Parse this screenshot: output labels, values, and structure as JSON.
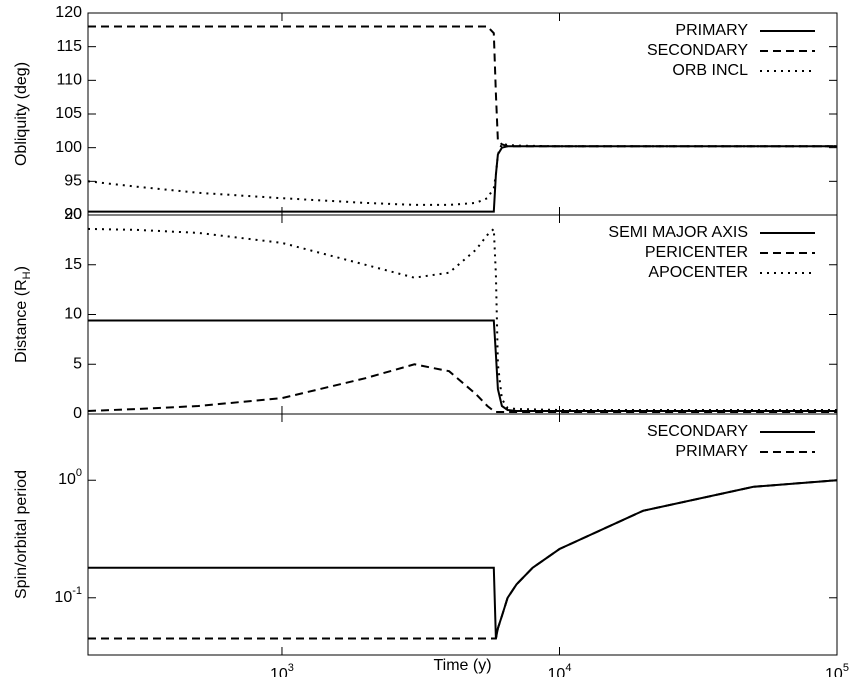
{
  "chart_data": [
    {
      "type": "line",
      "ylabel": "Obliquity (deg)",
      "xlog": true,
      "xlim": [
        200,
        100000
      ],
      "xticks": [
        1000,
        10000,
        100000
      ],
      "ylim": [
        90,
        120
      ],
      "yticks": [
        90,
        95,
        100,
        105,
        110,
        115,
        120
      ],
      "legend": "upper right",
      "x": [
        200,
        300,
        500,
        1000,
        2000,
        3000,
        4000,
        5000,
        5500,
        5800,
        5900,
        6000,
        6200,
        6500,
        7000,
        10000,
        20000,
        50000,
        100000
      ],
      "series": [
        {
          "name": "PRIMARY",
          "color": "#000000",
          "style": "solid",
          "values": [
            90.5,
            90.5,
            90.5,
            90.5,
            90.5,
            90.5,
            90.5,
            90.5,
            90.5,
            90.5,
            96,
            99,
            100,
            100.2,
            100.2,
            100.2,
            100.2,
            100.2,
            100.2
          ]
        },
        {
          "name": "SECONDARY",
          "color": "#000000",
          "style": "dashed",
          "values": [
            118,
            118,
            118,
            118,
            118,
            118,
            118,
            118,
            118,
            117,
            108,
            101,
            100.5,
            100.2,
            100.2,
            100.2,
            100.2,
            100.2,
            100.2
          ]
        },
        {
          "name": "ORB INCL",
          "color": "#000000",
          "style": "dotted",
          "values": [
            95,
            94.2,
            93.3,
            92.5,
            91.8,
            91.5,
            91.5,
            91.8,
            92.5,
            94,
            96,
            99,
            100.6,
            100.4,
            100.3,
            100.2,
            100.2,
            100.2,
            100.2
          ]
        }
      ]
    },
    {
      "type": "line",
      "ylabel": {
        "text": "Distance (R",
        "subscript": "H",
        "suffix": ")"
      },
      "xlog": true,
      "xlim": [
        200,
        100000
      ],
      "xticks": [
        1000,
        10000,
        100000
      ],
      "ylim": [
        0,
        20
      ],
      "yticks": [
        0,
        5,
        10,
        15,
        20
      ],
      "legend": "upper right",
      "x": [
        200,
        300,
        500,
        1000,
        2000,
        3000,
        4000,
        5000,
        5500,
        5800,
        5900,
        6000,
        6200,
        6500,
        7000,
        10000,
        20000,
        50000,
        100000
      ],
      "series": [
        {
          "name": "SEMI MAJOR AXIS",
          "color": "#000000",
          "style": "solid",
          "values": [
            9.4,
            9.4,
            9.4,
            9.4,
            9.4,
            9.4,
            9.4,
            9.4,
            9.4,
            9.4,
            6,
            2.5,
            0.8,
            0.4,
            0.3,
            0.3,
            0.3,
            0.3,
            0.3
          ]
        },
        {
          "name": "PERICENTER",
          "color": "#000000",
          "style": "dashed",
          "values": [
            0.3,
            0.5,
            0.8,
            1.6,
            3.6,
            5.0,
            4.3,
            2.0,
            0.8,
            0.3,
            0.2,
            0.2,
            0.2,
            0.2,
            0.2,
            0.2,
            0.2,
            0.2,
            0.2
          ]
        },
        {
          "name": "APOCENTER",
          "color": "#000000",
          "style": "dotted",
          "values": [
            18.6,
            18.5,
            18.2,
            17.2,
            15,
            13.7,
            14.2,
            16.5,
            18,
            18.6,
            14,
            5,
            1.5,
            0.6,
            0.5,
            0.4,
            0.4,
            0.4,
            0.4
          ]
        }
      ]
    },
    {
      "type": "line",
      "ylabel": "Spin/orbital period",
      "xlabel": "Time (y)",
      "xlog": true,
      "ylog": true,
      "xlim": [
        200,
        100000
      ],
      "xticks": [
        {
          "value": 1000,
          "label": "10",
          "exponent": "3"
        },
        {
          "value": 10000,
          "label": "10",
          "exponent": "4"
        },
        {
          "value": 100000,
          "label": "10",
          "exponent": "5"
        }
      ],
      "ylim": [
        0.0326,
        3.66
      ],
      "yticks": [
        {
          "value": 0.1,
          "label": "10",
          "exponent": "-1"
        },
        {
          "value": 1,
          "label": "10",
          "exponent": "0"
        }
      ],
      "legend": "upper right",
      "x": [
        200,
        500,
        1000,
        2000,
        5000,
        5800,
        5900,
        6000,
        6200,
        6500,
        7000,
        8000,
        10000,
        20000,
        50000,
        100000
      ],
      "series": [
        {
          "name": "SECONDARY",
          "color": "#000000",
          "style": "solid",
          "values": [
            0.18,
            0.18,
            0.18,
            0.18,
            0.18,
            0.18,
            0.045,
            0.055,
            0.07,
            0.1,
            0.13,
            0.18,
            0.26,
            0.55,
            0.88,
            1.0
          ]
        },
        {
          "name": "PRIMARY",
          "color": "#000000",
          "style": "dashed",
          "values": [
            0.045,
            0.045,
            0.045,
            0.045,
            0.045,
            0.045,
            0.045,
            0.055,
            0.07,
            0.1,
            0.13,
            0.18,
            0.26,
            0.55,
            0.88,
            1.0
          ]
        }
      ]
    }
  ]
}
